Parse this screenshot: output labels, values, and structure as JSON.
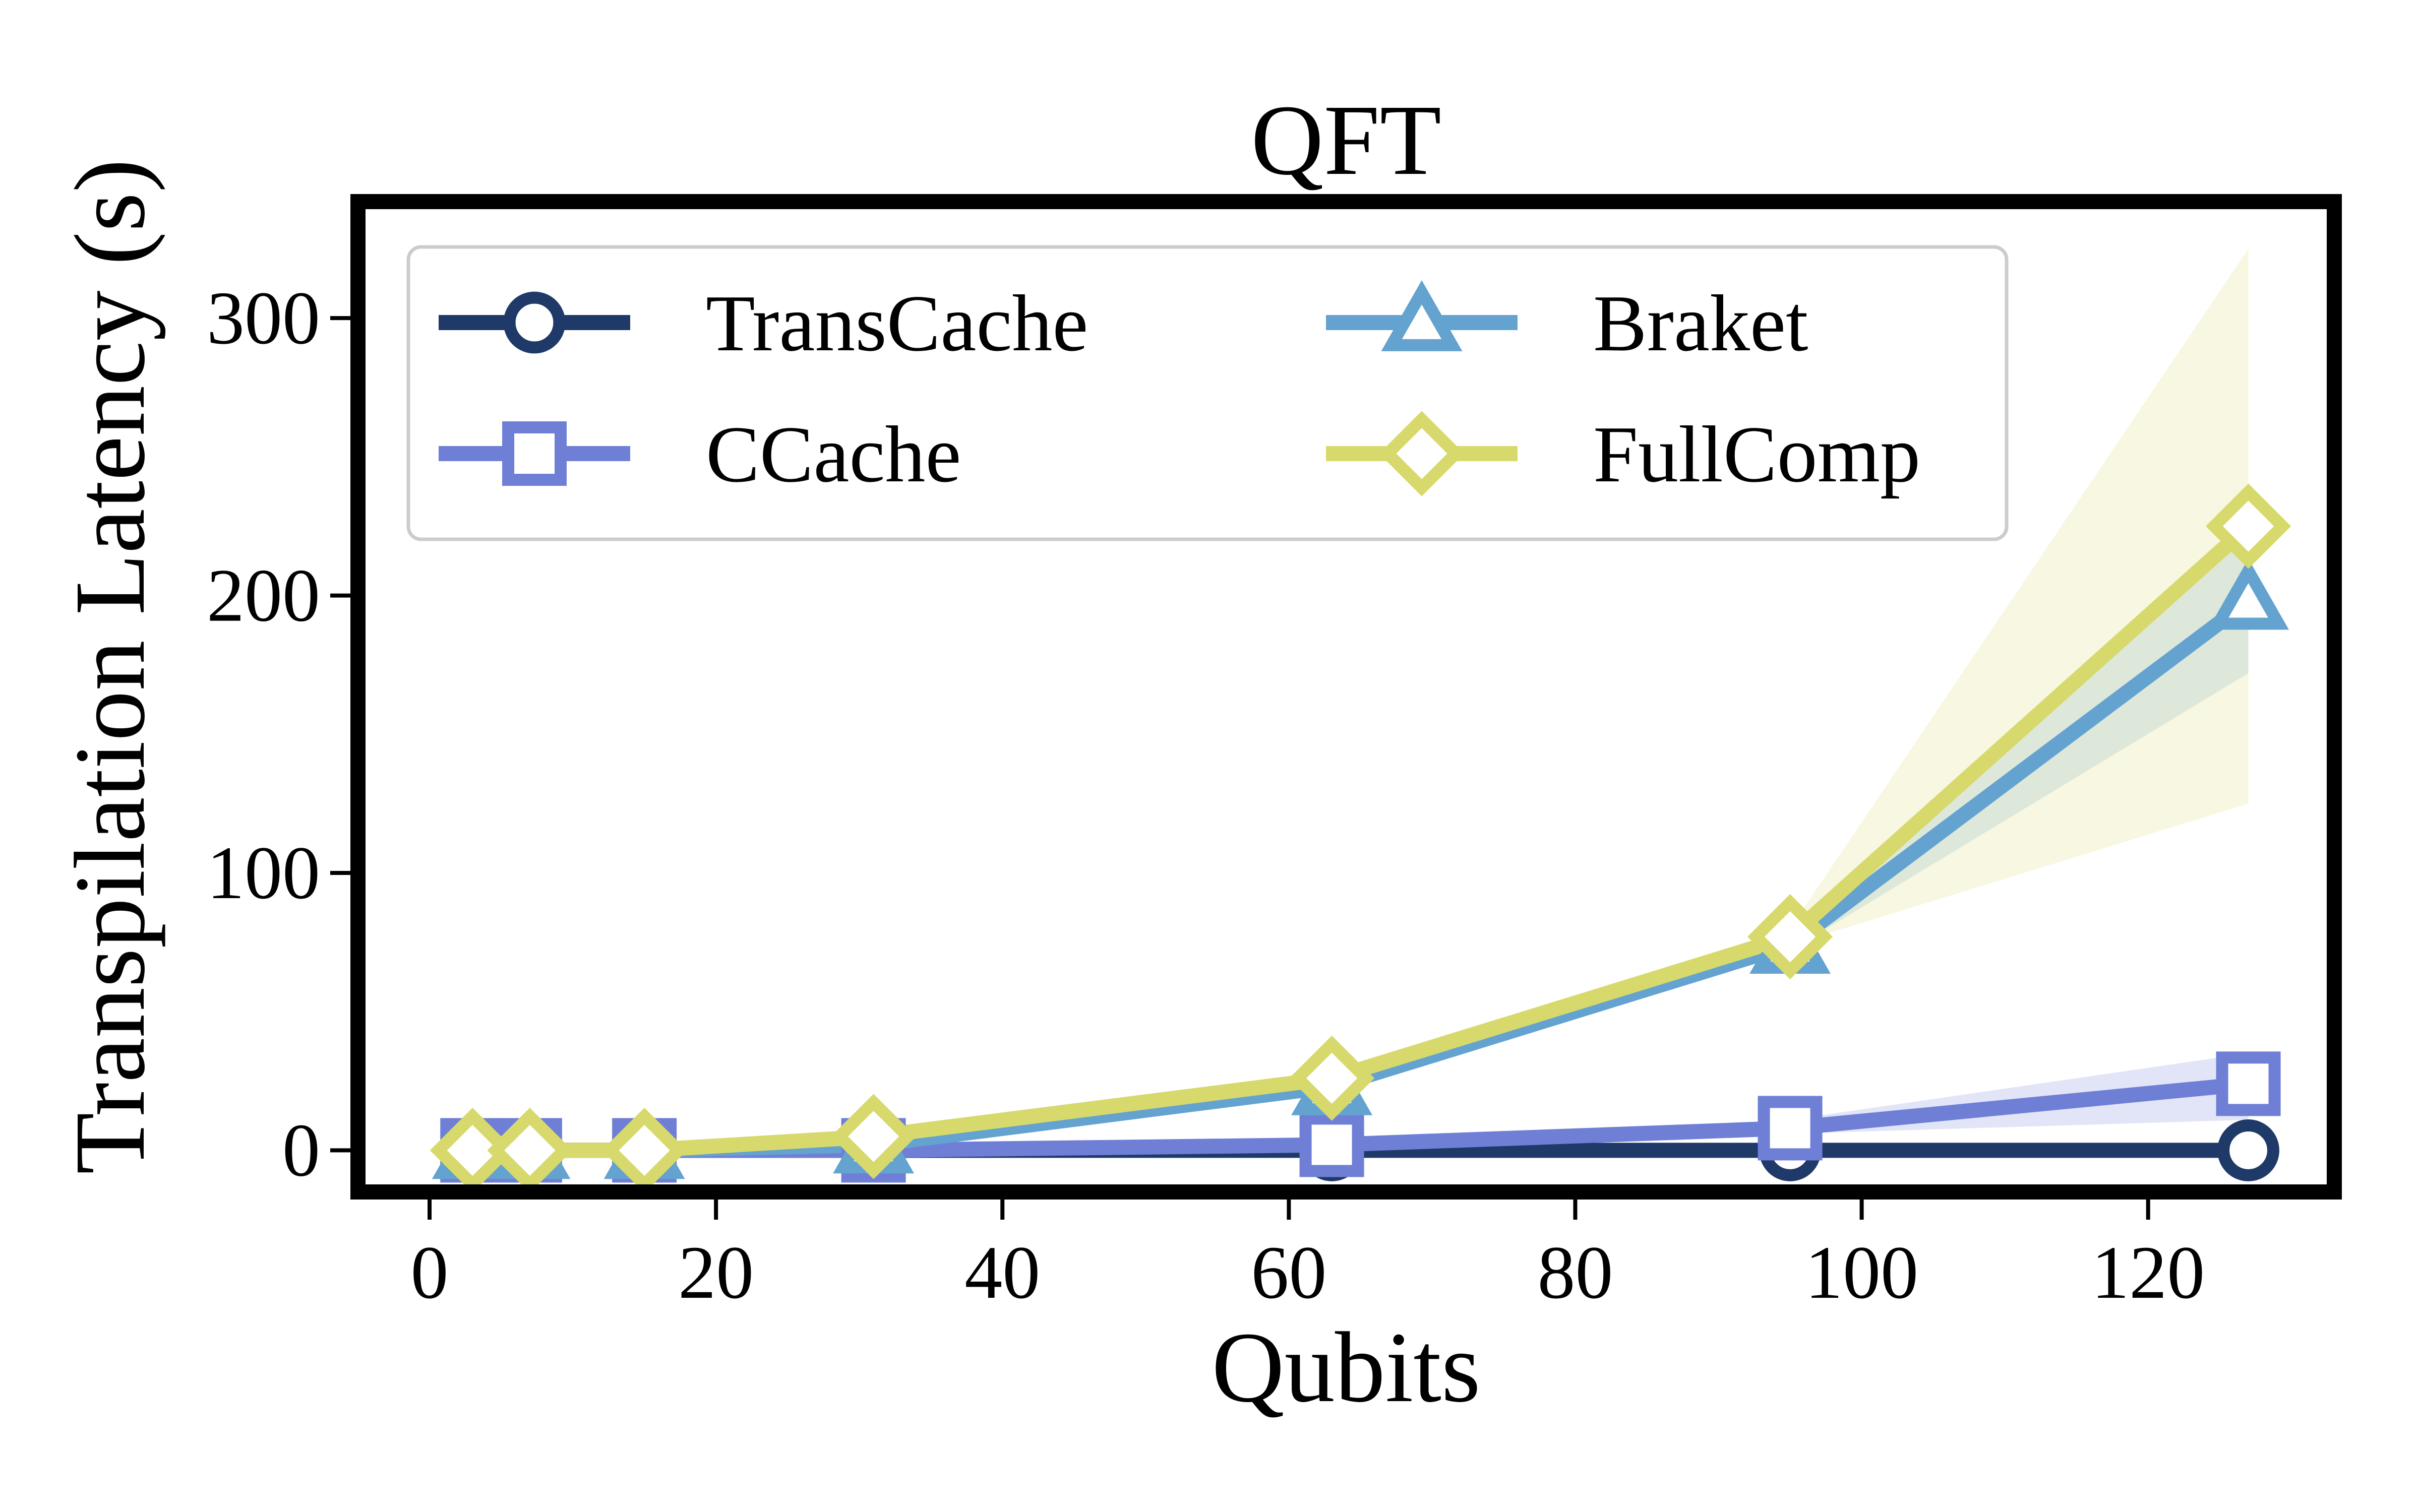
{
  "chart_data": {
    "type": "line",
    "title": "QFT",
    "xlabel": "Qubits",
    "ylabel": "Transpilation Latency (s)",
    "xlim": [
      -5,
      133
    ],
    "ylim": [
      -15,
      342
    ],
    "xticks": [
      0,
      20,
      40,
      60,
      80,
      100,
      120
    ],
    "yticks": [
      0,
      100,
      200,
      300
    ],
    "grid": false,
    "legend": {
      "placement": "top-left",
      "columns": 2
    },
    "x": [
      3,
      7,
      15,
      31,
      63,
      95,
      127
    ],
    "series": [
      {
        "name": "TransCache",
        "marker": "circle",
        "color": "#1f3a68",
        "values": [
          0,
          0,
          0,
          0,
          0,
          0,
          0
        ]
      },
      {
        "name": "CCache",
        "marker": "square",
        "color": "#6f7fd6",
        "values": [
          0,
          0,
          0,
          0,
          2,
          8,
          24
        ],
        "band_low": [
          0,
          0,
          0,
          0,
          1,
          6,
          11
        ],
        "band_high": [
          0,
          0,
          0,
          0,
          3,
          11,
          35
        ]
      },
      {
        "name": "Braket",
        "marker": "triangle",
        "color": "#64a3cf",
        "values": [
          0,
          0,
          0,
          2,
          23,
          74,
          198
        ],
        "band_low": [
          0,
          0,
          0,
          2,
          21,
          72,
          172
        ],
        "band_high": [
          0,
          0,
          0,
          3,
          25,
          76,
          222
        ]
      },
      {
        "name": "FullComp",
        "marker": "diamond",
        "color": "#d7d96c",
        "values": [
          0,
          0,
          0,
          5,
          26,
          77,
          225
        ],
        "band_low": [
          0,
          0,
          0,
          4,
          24,
          74,
          125
        ],
        "band_high": [
          0,
          0,
          0,
          6,
          28,
          80,
          325
        ]
      }
    ]
  }
}
